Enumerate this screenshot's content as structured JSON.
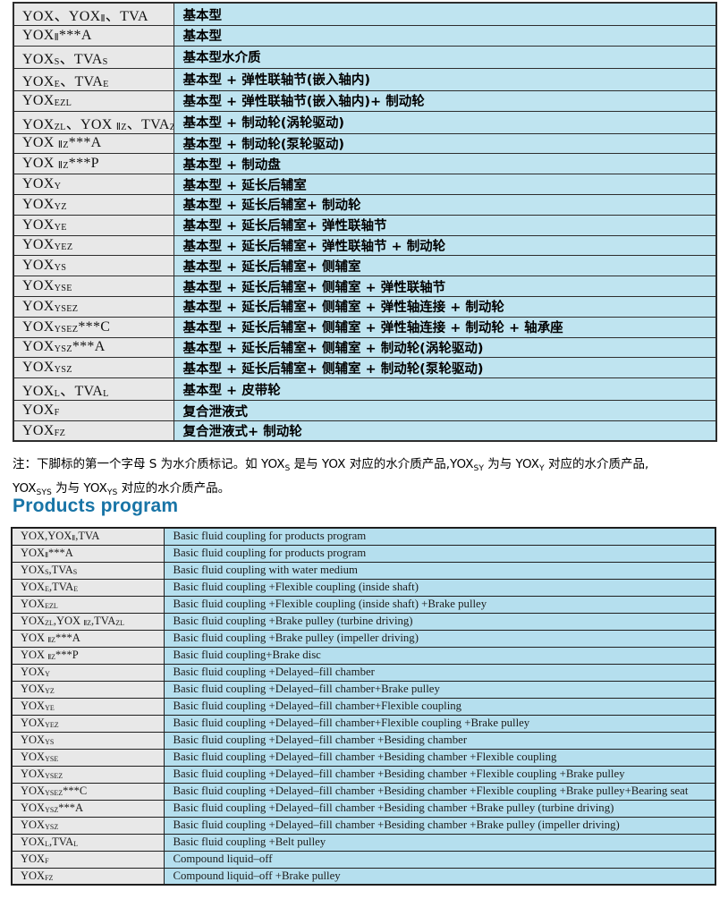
{
  "colors": {
    "cell_gray": "#e8e8e8",
    "cn_cell_blue": "#bfe4f0",
    "en_cell_blue": "#b5dfee",
    "border": "#2d2d2d",
    "heading_blue": "#1874a6"
  },
  "top_table": {
    "rows": [
      {
        "model": "YOX、YOX_{Ⅱ}、TVA",
        "desc": "基本型"
      },
      {
        "model": "YOX_{Ⅱ}***A",
        "desc": "基本型"
      },
      {
        "model": "YOX_{S}、TVA_{S}",
        "desc": "基本型水介质"
      },
      {
        "model": "YOX_{E}、TVA_{E}",
        "desc": "基本型 + 弹性联轴节(嵌入轴内)"
      },
      {
        "model": "YOX_{EZL}",
        "desc": "基本型 + 弹性联轴节(嵌入轴内)+ 制动轮"
      },
      {
        "model": "YOX_{ZL}、YOX _{ⅡZ}、TVA_{ZL}",
        "desc": "基本型 + 制动轮(涡轮驱动)"
      },
      {
        "model": "YOX _{ⅡZ}***A",
        "desc": "基本型 + 制动轮(泵轮驱动)"
      },
      {
        "model": "YOX _{ⅡZ}***P",
        "desc": "基本型 + 制动盘"
      },
      {
        "model": "YOX_{Y}",
        "desc": "基本型 + 延长后辅室"
      },
      {
        "model": "YOX_{YZ}",
        "desc": "基本型 + 延长后辅室+ 制动轮"
      },
      {
        "model": "YOX_{YE}",
        "desc": "基本型 + 延长后辅室+ 弹性联轴节"
      },
      {
        "model": "YOX_{YEZ}",
        "desc": "基本型 + 延长后辅室+ 弹性联轴节 + 制动轮"
      },
      {
        "model": "YOX_{YS}",
        "desc": "基本型 + 延长后辅室+ 侧辅室"
      },
      {
        "model": "YOX_{YSE}",
        "desc": "基本型 + 延长后辅室+ 侧辅室 + 弹性联轴节"
      },
      {
        "model": "YOX_{YSEZ}",
        "desc": "基本型 + 延长后辅室+ 侧辅室 + 弹性轴连接 + 制动轮"
      },
      {
        "model": "YOX_{YSEZ}***C",
        "desc": "基本型 + 延长后辅室+ 侧辅室 + 弹性轴连接 + 制动轮 + 轴承座"
      },
      {
        "model": "YOX_{YSZ}***A",
        "desc": "基本型 + 延长后辅室+ 侧辅室 + 制动轮(涡轮驱动)"
      },
      {
        "model": "YOX_{YSZ}",
        "desc": "基本型 + 延长后辅室+ 侧辅室 + 制动轮(泵轮驱动)"
      },
      {
        "model": "YOX_{L}、TVA_{L}",
        "desc": "基本型 + 皮带轮"
      },
      {
        "model": "YOX_{F}",
        "desc": "复合泄液式"
      },
      {
        "model": "YOX_{FZ}",
        "desc": "复合泄液式+ 制动轮"
      }
    ]
  },
  "note": {
    "line1": "注：下脚标的第一个字母 S 为水介质标记。如 YOX_{S} 是与 YOX 对应的水介质产品,YOX_{SY} 为与 YOX_{Y} 对应的水介质产品,",
    "line2": "YOX_{SYS} 为与 YOX_{YS} 对应的水介质产品。"
  },
  "heading": "Products program",
  "bottom_table": {
    "rows": [
      {
        "model": "YOX,YOX_{Ⅱ},TVA",
        "desc": "Basic fluid coupling for products program"
      },
      {
        "model": "YOX_{Ⅱ}***A",
        "desc": "Basic fluid coupling for products program"
      },
      {
        "model": "YOX_{S},TVA_{S}",
        "desc": "Basic fluid coupling with water medium"
      },
      {
        "model": "YOX_{E},TVA_{E}",
        "desc": "Basic fluid coupling +Flexible coupling (inside shaft)"
      },
      {
        "model": "YOX_{EZL}",
        "desc": "Basic fluid coupling +Flexible coupling (inside shaft) +Brake pulley"
      },
      {
        "model": "YOX_{ZL},YOX _{ⅡZ},TVA_{ZL}",
        "desc": "Basic fluid coupling +Brake pulley (turbine driving)"
      },
      {
        "model": "YOX _{ⅡZ}***A",
        "desc": "Basic fluid coupling +Brake pulley (impeller driving)"
      },
      {
        "model": "YOX _{ⅡZ}***P",
        "desc": "Basic fluid coupling+Brake disc"
      },
      {
        "model": "YOX_{Y}",
        "desc": "Basic fluid coupling +Delayed–fill chamber"
      },
      {
        "model": "YOX_{YZ}",
        "desc": "Basic fluid coupling +Delayed–fill chamber+Brake pulley"
      },
      {
        "model": "YOX_{YE}",
        "desc": "Basic fluid coupling +Delayed–fill chamber+Flexible coupling"
      },
      {
        "model": "YOX_{YEZ}",
        "desc": "Basic fluid coupling +Delayed–fill chamber+Flexible coupling +Brake pulley"
      },
      {
        "model": "YOX_{YS}",
        "desc": "Basic fluid coupling +Delayed–fill chamber +Besiding chamber"
      },
      {
        "model": "YOX_{YSE}",
        "desc": "Basic fluid coupling +Delayed–fill chamber +Besiding chamber +Flexible coupling"
      },
      {
        "model": "YOX_{YSEZ}",
        "desc": "Basic fluid coupling +Delayed–fill chamber +Besiding chamber +Flexible coupling +Brake pulley"
      },
      {
        "model": "YOX_{YSEZ}***C",
        "desc": "Basic fluid coupling +Delayed–fill chamber +Besiding chamber +Flexible coupling +Brake pulley+Bearing seat"
      },
      {
        "model": "YOX_{YSZ}***A",
        "desc": "Basic fluid coupling +Delayed–fill chamber +Besiding chamber +Brake pulley (turbine driving)"
      },
      {
        "model": "YOX_{YSZ}",
        "desc": "Basic fluid coupling +Delayed–fill chamber +Besiding chamber +Brake pulley (impeller driving)"
      },
      {
        "model": "YOX_{L},TVA_{L}",
        "desc": "Basic fluid coupling +Belt pulley"
      },
      {
        "model": "YOX_{F}",
        "desc": "Compound liquid–off"
      },
      {
        "model": "YOX_{FZ}",
        "desc": "Compound liquid–off +Brake pulley"
      }
    ]
  }
}
